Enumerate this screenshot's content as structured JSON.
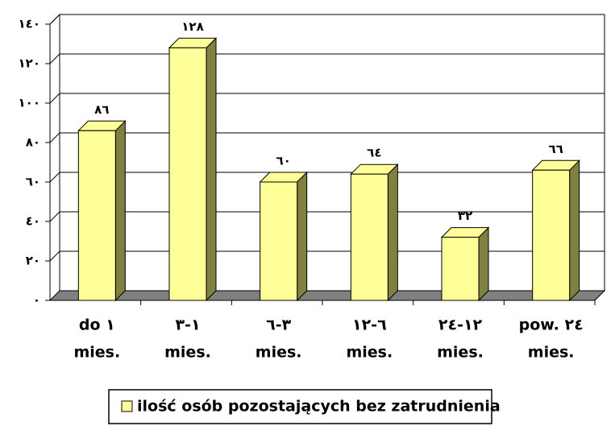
{
  "chart_data": {
    "type": "bar",
    "categories": [
      [
        "do ١",
        "mies."
      ],
      [
        "١-٣",
        "mies."
      ],
      [
        "٣-٦",
        "mies."
      ],
      [
        "٦-١٢",
        "mies."
      ],
      [
        "١٢-٢٤",
        "mies."
      ],
      [
        "pow. ٢٤",
        "mies."
      ]
    ],
    "series": [
      {
        "name": "ilość osób pozostających bez zatrudnienia",
        "color": "#ffff99",
        "side_color": "#808040",
        "values": [
          86,
          128,
          60,
          64,
          32,
          66
        ],
        "value_labels": [
          "٨٦",
          "١٢٨",
          "٦٠",
          "٦٤",
          "٣٢",
          "٦٦"
        ]
      }
    ],
    "ylim": [
      0,
      140
    ],
    "yticks": [
      {
        "value": 0,
        "label": "٠"
      },
      {
        "value": 20,
        "label": "٢٠"
      },
      {
        "value": 40,
        "label": "٤٠"
      },
      {
        "value": 60,
        "label": "٦٠"
      },
      {
        "value": 80,
        "label": "٨٠"
      },
      {
        "value": 100,
        "label": "١٠٠"
      },
      {
        "value": 120,
        "label": "١٢٠"
      },
      {
        "value": 140,
        "label": "١٤٠"
      }
    ],
    "grid": true
  }
}
